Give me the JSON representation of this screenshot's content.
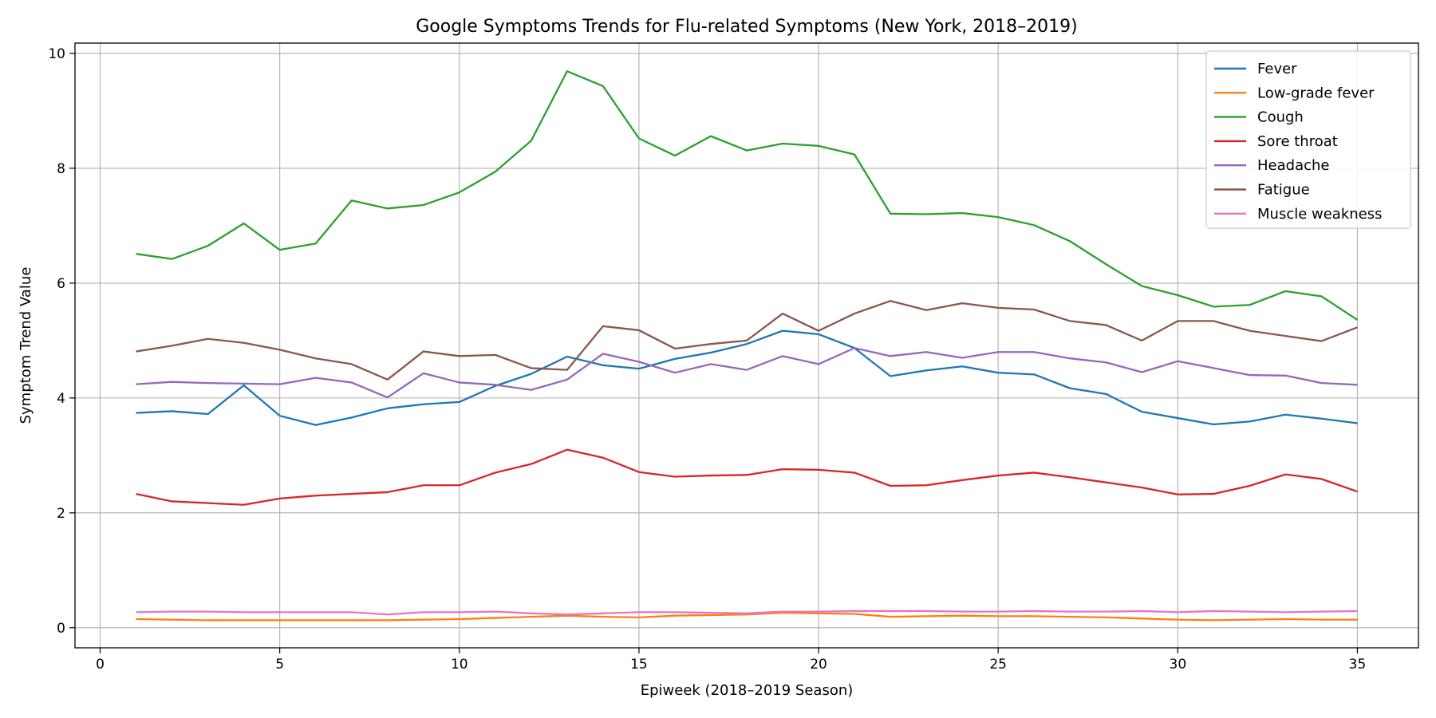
{
  "chart_data": {
    "type": "line",
    "title": "Google Symptoms Trends for Flu-related Symptoms (New York, 2018–2019)",
    "xlabel": "Epiweek (2018–2019 Season)",
    "ylabel": "Symptom Trend Value",
    "xlim": [
      -0.7,
      36.7
    ],
    "ylim": [
      -0.35,
      10.18
    ],
    "xticks": [
      0,
      5,
      10,
      15,
      20,
      25,
      30,
      35
    ],
    "yticks": [
      0,
      2,
      4,
      6,
      8,
      10
    ],
    "grid": true,
    "legend_position": "top-right",
    "x": [
      1,
      2,
      3,
      4,
      5,
      6,
      7,
      8,
      9,
      10,
      11,
      12,
      13,
      14,
      15,
      16,
      17,
      18,
      19,
      20,
      21,
      22,
      23,
      24,
      25,
      26,
      27,
      28,
      29,
      30,
      31,
      32,
      33,
      34,
      35
    ],
    "series": [
      {
        "name": "Fever",
        "color": "#1f77b4",
        "values": [
          3.74,
          3.77,
          3.72,
          4.22,
          3.69,
          3.53,
          3.66,
          3.82,
          3.89,
          3.93,
          4.21,
          4.42,
          4.72,
          4.57,
          4.51,
          4.68,
          4.79,
          4.94,
          5.17,
          5.11,
          4.87,
          4.38,
          4.48,
          4.55,
          4.44,
          4.41,
          4.17,
          4.07,
          3.76,
          3.65,
          3.54,
          3.59,
          3.71,
          3.64,
          3.56
        ]
      },
      {
        "name": "Low-grade fever",
        "color": "#ff7f0e",
        "values": [
          0.15,
          0.14,
          0.13,
          0.13,
          0.13,
          0.13,
          0.13,
          0.13,
          0.14,
          0.15,
          0.17,
          0.19,
          0.21,
          0.19,
          0.18,
          0.21,
          0.22,
          0.23,
          0.26,
          0.25,
          0.24,
          0.19,
          0.2,
          0.21,
          0.2,
          0.2,
          0.19,
          0.18,
          0.16,
          0.14,
          0.13,
          0.14,
          0.15,
          0.14,
          0.14
        ]
      },
      {
        "name": "Cough",
        "color": "#2ca02c",
        "values": [
          6.51,
          6.42,
          6.65,
          7.04,
          6.58,
          6.69,
          7.44,
          7.3,
          7.36,
          7.58,
          7.94,
          8.48,
          9.69,
          9.43,
          8.52,
          8.22,
          8.56,
          8.31,
          8.43,
          8.39,
          8.24,
          7.21,
          7.2,
          7.22,
          7.15,
          7.01,
          6.73,
          6.33,
          5.95,
          5.79,
          5.59,
          5.62,
          5.86,
          5.77,
          5.36
        ]
      },
      {
        "name": "Sore throat",
        "color": "#d62728",
        "values": [
          2.33,
          2.2,
          2.17,
          2.14,
          2.25,
          2.3,
          2.33,
          2.36,
          2.48,
          2.48,
          2.7,
          2.85,
          3.1,
          2.96,
          2.71,
          2.63,
          2.65,
          2.66,
          2.76,
          2.75,
          2.7,
          2.47,
          2.48,
          2.57,
          2.65,
          2.7,
          2.62,
          2.53,
          2.44,
          2.32,
          2.33,
          2.47,
          2.67,
          2.59,
          2.37
        ]
      },
      {
        "name": "Headache",
        "color": "#9467bd",
        "values": [
          4.24,
          4.28,
          4.26,
          4.25,
          4.24,
          4.35,
          4.27,
          4.01,
          4.43,
          4.27,
          4.23,
          4.14,
          4.32,
          4.77,
          4.63,
          4.44,
          4.59,
          4.49,
          4.73,
          4.59,
          4.87,
          4.73,
          4.8,
          4.7,
          4.8,
          4.8,
          4.69,
          4.62,
          4.45,
          4.64,
          4.52,
          4.4,
          4.39,
          4.26,
          4.23
        ]
      },
      {
        "name": "Fatigue",
        "color": "#8c564b",
        "values": [
          4.81,
          4.91,
          5.03,
          4.96,
          4.84,
          4.69,
          4.59,
          4.32,
          4.81,
          4.73,
          4.75,
          4.52,
          4.49,
          5.25,
          5.18,
          4.86,
          4.94,
          5.0,
          5.47,
          5.17,
          5.47,
          5.69,
          5.53,
          5.65,
          5.57,
          5.54,
          5.34,
          5.27,
          5.0,
          5.34,
          5.34,
          5.17,
          5.08,
          4.99,
          5.23
        ]
      },
      {
        "name": "Muscle weakness",
        "color": "#e377c2",
        "values": [
          0.27,
          0.28,
          0.28,
          0.27,
          0.27,
          0.27,
          0.27,
          0.23,
          0.27,
          0.27,
          0.28,
          0.25,
          0.23,
          0.25,
          0.27,
          0.27,
          0.26,
          0.25,
          0.28,
          0.28,
          0.29,
          0.29,
          0.29,
          0.28,
          0.28,
          0.29,
          0.28,
          0.28,
          0.29,
          0.27,
          0.29,
          0.28,
          0.27,
          0.28,
          0.29
        ]
      }
    ]
  }
}
